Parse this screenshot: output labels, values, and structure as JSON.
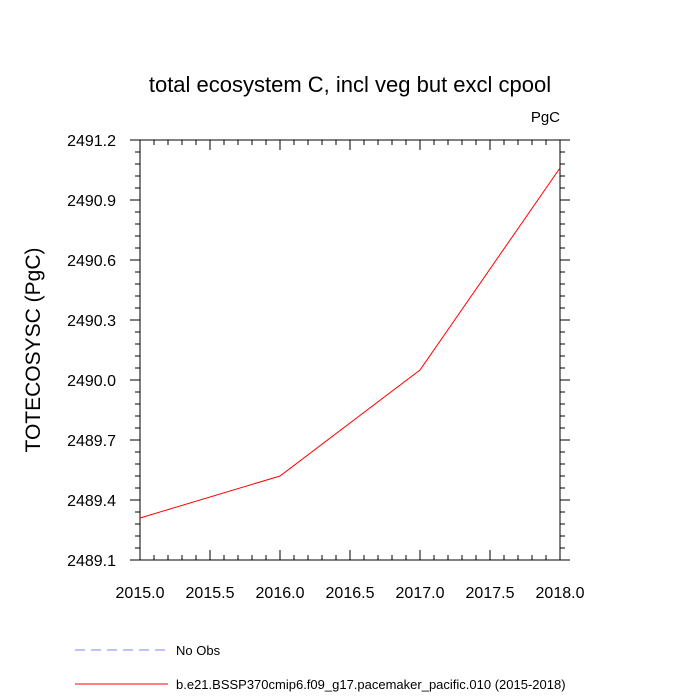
{
  "chart_data": {
    "type": "line",
    "title": "total ecosystem C, incl veg but excl cpool",
    "units_label": "PgC",
    "ylabel": "TOTECOSYSC  (PgC)",
    "xlabel": "",
    "xlim": [
      2015.0,
      2018.0
    ],
    "ylim": [
      2489.1,
      2491.2
    ],
    "x_ticks": [
      "2015.0",
      "2015.5",
      "2016.0",
      "2016.5",
      "2017.0",
      "2017.5",
      "2018.0"
    ],
    "y_ticks": [
      "2489.1",
      "2489.4",
      "2489.7",
      "2490.0",
      "2490.3",
      "2490.6",
      "2490.9",
      "2491.2"
    ],
    "grid": false,
    "legend_position": "bottom",
    "series": [
      {
        "name": "No Obs",
        "style": "dashed",
        "color": "#8080ff",
        "x": [],
        "y": []
      },
      {
        "name": "b.e21.BSSP370cmip6.f09_g17.pacemaker_pacific.010 (2015-2018)",
        "style": "solid",
        "color": "#ff0000",
        "x": [
          2015.0,
          2016.0,
          2017.0,
          2018.0
        ],
        "y": [
          2489.31,
          2489.52,
          2490.05,
          2491.06
        ]
      }
    ]
  }
}
